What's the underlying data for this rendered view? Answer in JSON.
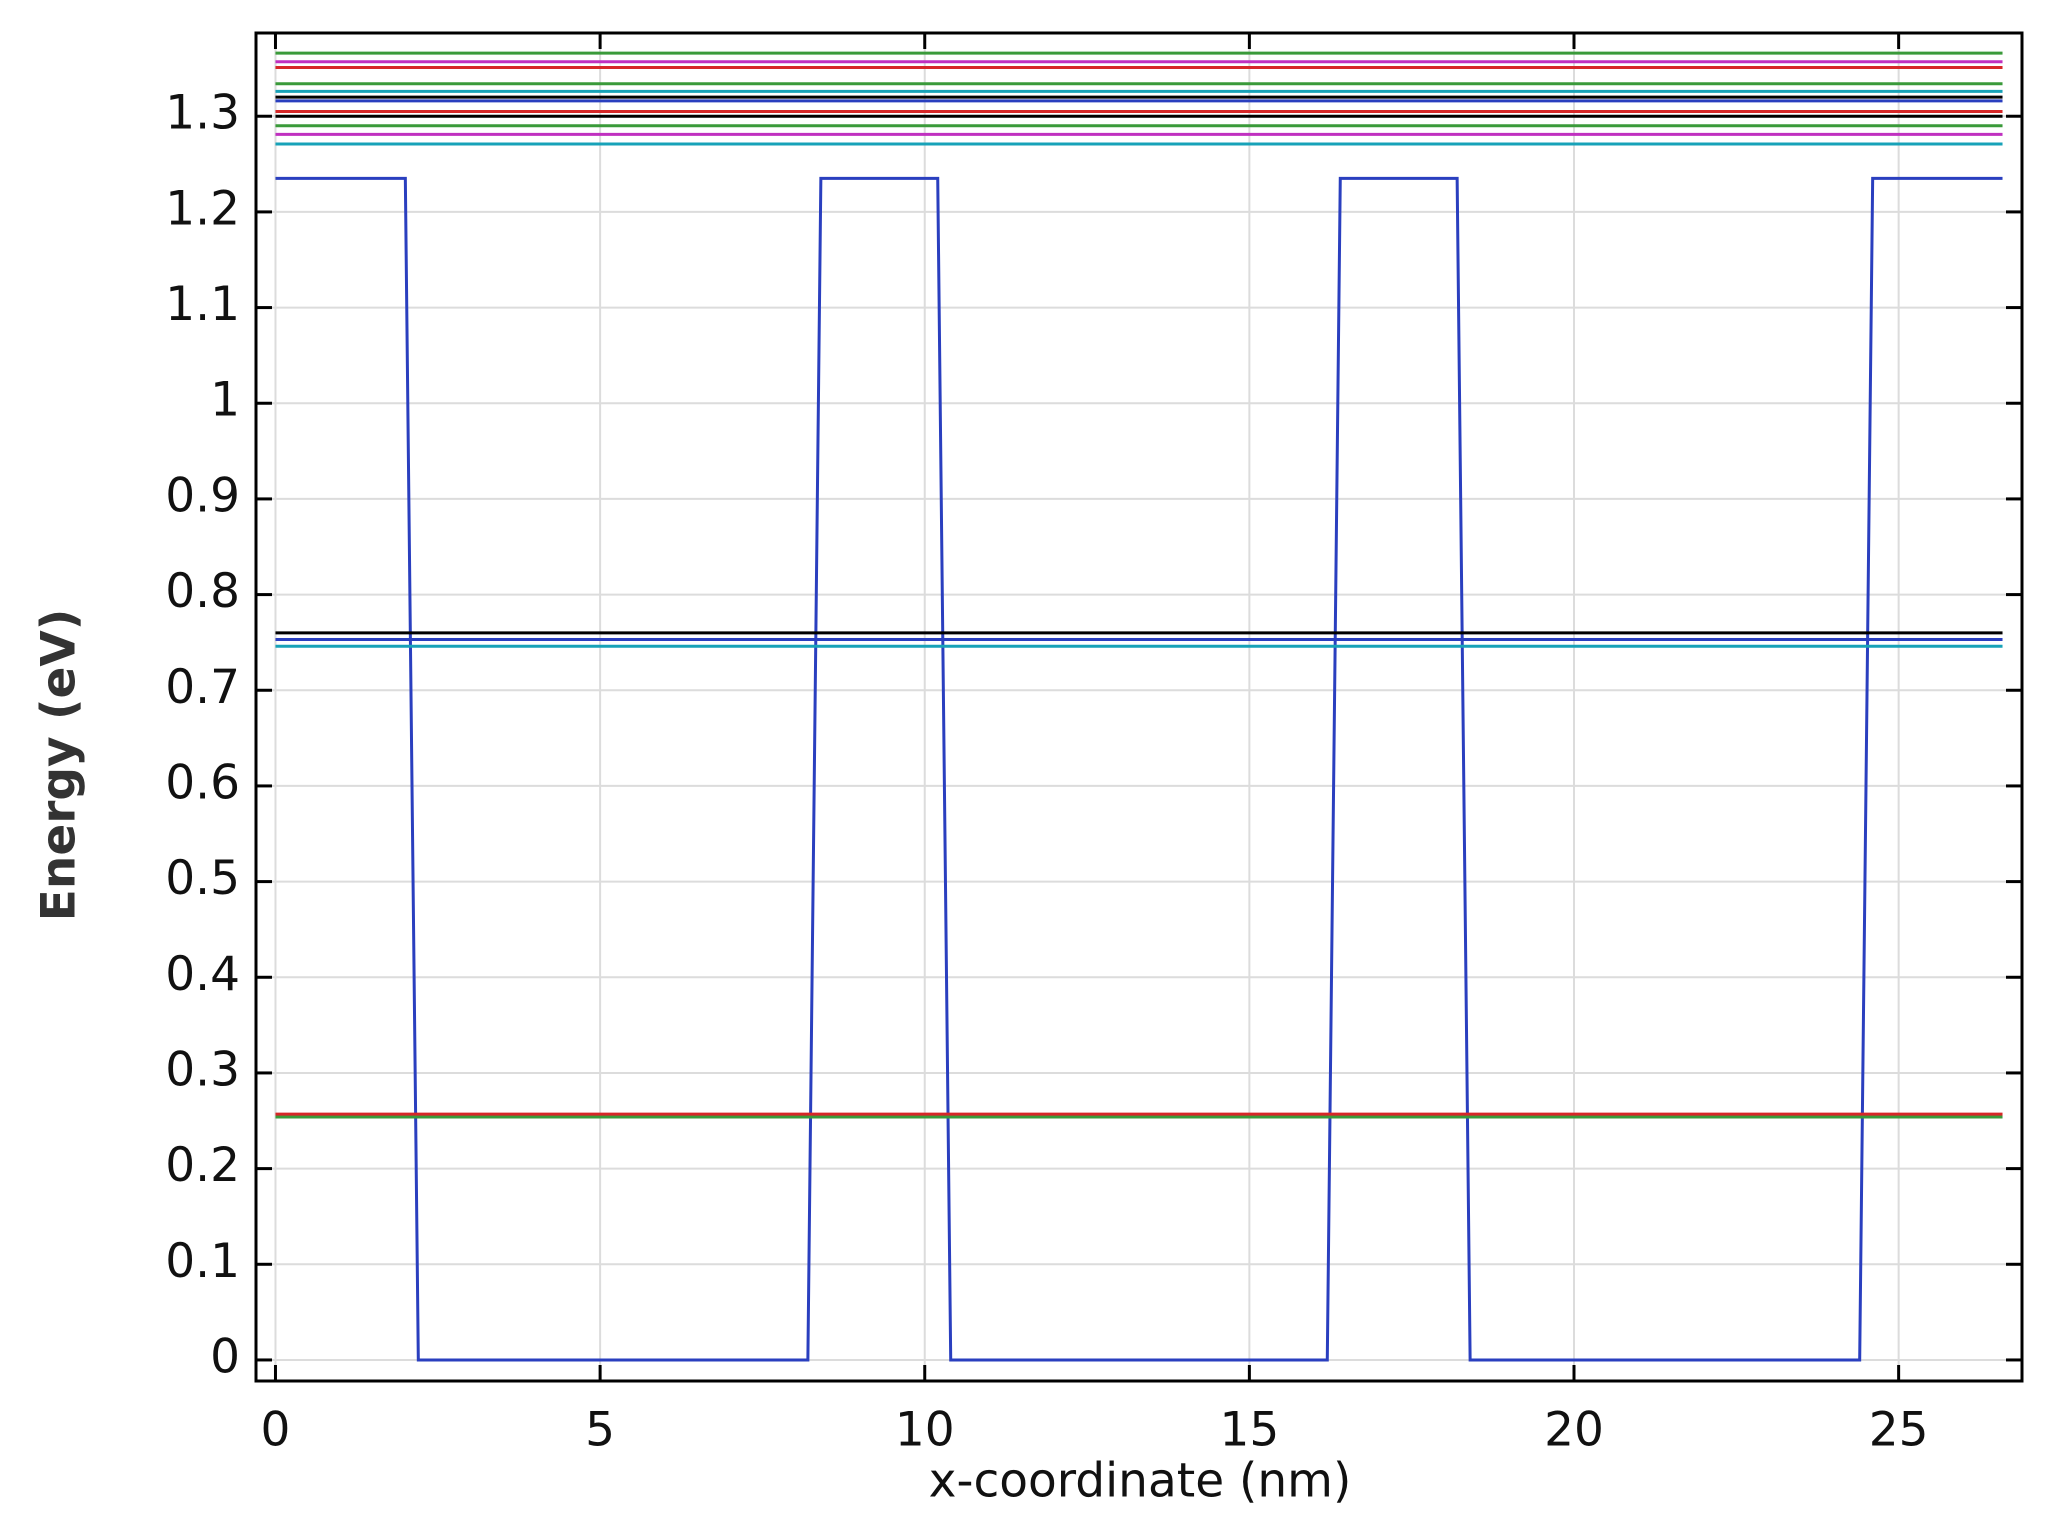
{
  "chart_data": {
    "type": "line",
    "xlabel": "x-coordinate (nm)",
    "ylabel": "Energy (eV)",
    "xlim": [
      -0.3,
      26.9
    ],
    "ylim": [
      -0.022,
      1.387
    ],
    "xticks": [
      0,
      5,
      10,
      15,
      20,
      25
    ],
    "yticks": [
      0,
      0.1,
      0.2,
      0.3,
      0.4,
      0.5,
      0.6,
      0.7,
      0.8,
      0.9,
      1,
      1.1,
      1.2,
      1.3
    ],
    "grid": true,
    "series": [
      {
        "color": "#2a3fbf",
        "x": [
          0,
          2,
          2.2,
          8.2,
          8.4,
          10.2,
          10.4,
          16.2,
          16.4,
          18.2,
          18.4,
          24.4,
          24.6,
          26.6
        ],
        "values": [
          1.235,
          1.235,
          0,
          0,
          1.235,
          1.235,
          0,
          0,
          1.235,
          1.235,
          0,
          0,
          1.235,
          1.235
        ]
      },
      {
        "color": "#3a9a3a",
        "x": [
          0,
          26.6
        ],
        "values": [
          0.254,
          0.254
        ]
      },
      {
        "color": "#d62728",
        "x": [
          0,
          26.6
        ],
        "values": [
          0.257,
          0.257
        ]
      },
      {
        "color": "#17a2b8",
        "x": [
          0,
          26.6
        ],
        "values": [
          0.746,
          0.746
        ]
      },
      {
        "color": "#2a3fbf",
        "x": [
          0,
          26.6
        ],
        "values": [
          0.753,
          0.753
        ]
      },
      {
        "color": "#000000",
        "x": [
          0,
          26.6
        ],
        "values": [
          0.76,
          0.76
        ]
      },
      {
        "color": "#17a2b8",
        "x": [
          0,
          26.6
        ],
        "values": [
          1.271,
          1.271
        ]
      },
      {
        "color": "#c030c0",
        "x": [
          0,
          26.6
        ],
        "values": [
          1.281,
          1.281
        ]
      },
      {
        "color": "#3a9a3a",
        "x": [
          0,
          26.6
        ],
        "values": [
          1.29,
          1.29
        ]
      },
      {
        "color": "#000000",
        "x": [
          0,
          26.6
        ],
        "values": [
          1.3,
          1.3
        ]
      },
      {
        "color": "#d62728",
        "x": [
          0,
          26.6
        ],
        "values": [
          1.305,
          1.305
        ]
      },
      {
        "color": "#2a3fbf",
        "x": [
          0,
          26.6
        ],
        "values": [
          1.316,
          1.316
        ]
      },
      {
        "color": "#000000",
        "x": [
          0,
          26.6
        ],
        "values": [
          1.32,
          1.32
        ]
      },
      {
        "color": "#17a2b8",
        "x": [
          0,
          26.6
        ],
        "values": [
          1.326,
          1.326
        ]
      },
      {
        "color": "#3a9a3a",
        "x": [
          0,
          26.6
        ],
        "values": [
          1.334,
          1.334
        ]
      },
      {
        "color": "#d62728",
        "x": [
          0,
          26.6
        ],
        "values": [
          1.351,
          1.351
        ]
      },
      {
        "color": "#c030c0",
        "x": [
          0,
          26.6
        ],
        "values": [
          1.357,
          1.357
        ]
      },
      {
        "color": "#3a9a3a",
        "x": [
          0,
          26.6
        ],
        "values": [
          1.366,
          1.366
        ]
      }
    ]
  }
}
